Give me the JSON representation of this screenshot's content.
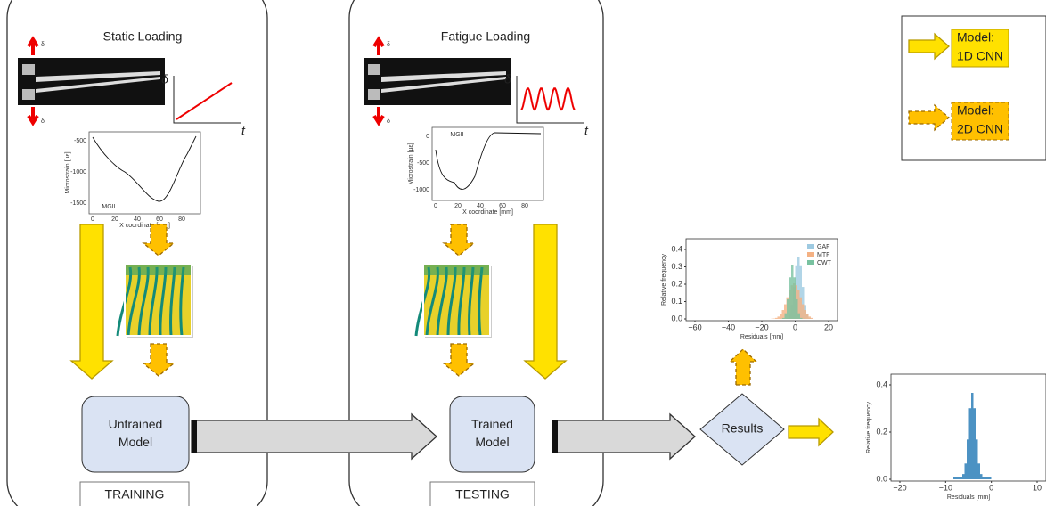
{
  "panels": [
    {
      "title": "Static Loading",
      "label": "TRAINING",
      "model": [
        "Untrained",
        "Model"
      ]
    },
    {
      "title": "Fatigue Loading",
      "label": "TESTING",
      "model": [
        "Trained",
        "Model"
      ]
    }
  ],
  "loading_axes": {
    "y": "δ",
    "x": "t"
  },
  "specimen_label": "δ",
  "strain_plots": [
    {
      "yticks": [
        "-500",
        "-1000",
        "-1500"
      ],
      "xticks": [
        "0",
        "20",
        "40",
        "60",
        "80"
      ],
      "ylabel": "Microstrain [µε]",
      "xlabel": "X coordinate [mm]",
      "legend": "MGII"
    },
    {
      "yticks": [
        "0",
        "-500",
        "-1000"
      ],
      "xticks": [
        "0",
        "20",
        "40",
        "60",
        "80"
      ],
      "ylabel": "Microstrain [µε]",
      "xlabel": "X coordinate [mm]",
      "legend": "MGII"
    }
  ],
  "results": "Results",
  "histogram_2d": {
    "yticks": [
      "0.0",
      "0.1",
      "0.2",
      "0.3",
      "0.4"
    ],
    "xticks": [
      "−60",
      "−40",
      "−20",
      "0",
      "20"
    ],
    "ylabel": "Relative frequency",
    "xlabel": "Residuals [mm]",
    "legend": [
      "GAF",
      "MTF",
      "CWT"
    ]
  },
  "histogram_1d": {
    "yticks": [
      "0.0",
      "0.2",
      "0.4"
    ],
    "xticks": [
      "−20",
      "−10",
      "0",
      "10"
    ],
    "ylabel": "Relative frequency",
    "xlabel": "Residuals [mm]"
  },
  "legend": [
    {
      "line1": "Model:",
      "line2": "1D CNN"
    },
    {
      "line1": "Model:",
      "line2": "2D CNN"
    }
  ]
}
